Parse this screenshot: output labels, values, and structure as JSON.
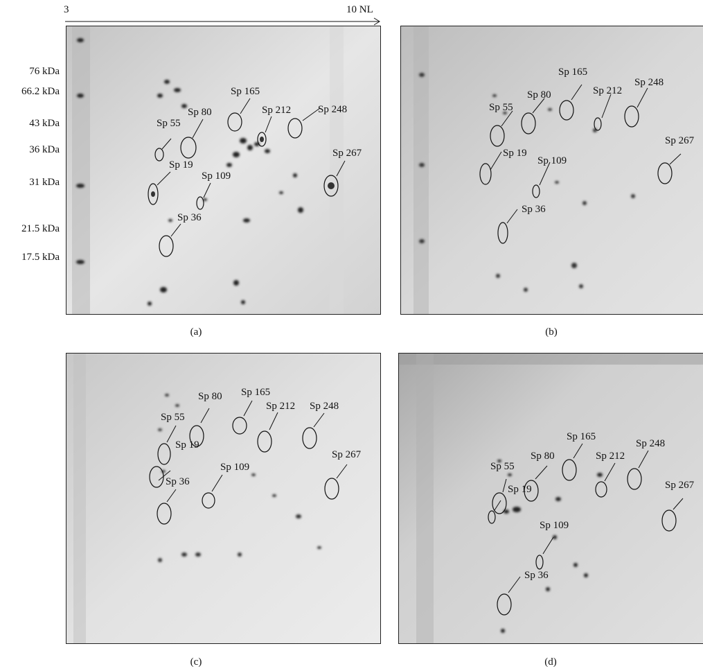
{
  "ph_axis": {
    "start": "3",
    "end": "10 NL"
  },
  "mw_markers": [
    "76 kDa",
    "66.2 kDa",
    "43 kDa",
    "36 kDa",
    "31 kDa",
    "21.5 kDa",
    "17.5 kDa"
  ],
  "panels": [
    {
      "caption": "(a)",
      "spots": [
        "Sp 165",
        "Sp 80",
        "Sp 212",
        "Sp 248",
        "Sp 55",
        "Sp 267",
        "Sp 19",
        "Sp 109",
        "Sp 36"
      ]
    },
    {
      "caption": "(b)",
      "spots": [
        "Sp 165",
        "Sp 80",
        "Sp 212",
        "Sp 248",
        "Sp 55",
        "Sp 267",
        "Sp 19",
        "Sp 109",
        "Sp 36"
      ]
    },
    {
      "caption": "(c)",
      "spots": [
        "Sp 80",
        "Sp 165",
        "Sp 212",
        "Sp 248",
        "Sp 55",
        "Sp 267",
        "Sp 19",
        "Sp 109",
        "Sp 36"
      ]
    },
    {
      "caption": "(d)",
      "spots": [
        "Sp 165",
        "Sp 80",
        "Sp 212",
        "Sp 248",
        "Sp 55",
        "Sp 19",
        "Sp 267",
        "Sp 109",
        "Sp 36"
      ]
    }
  ]
}
